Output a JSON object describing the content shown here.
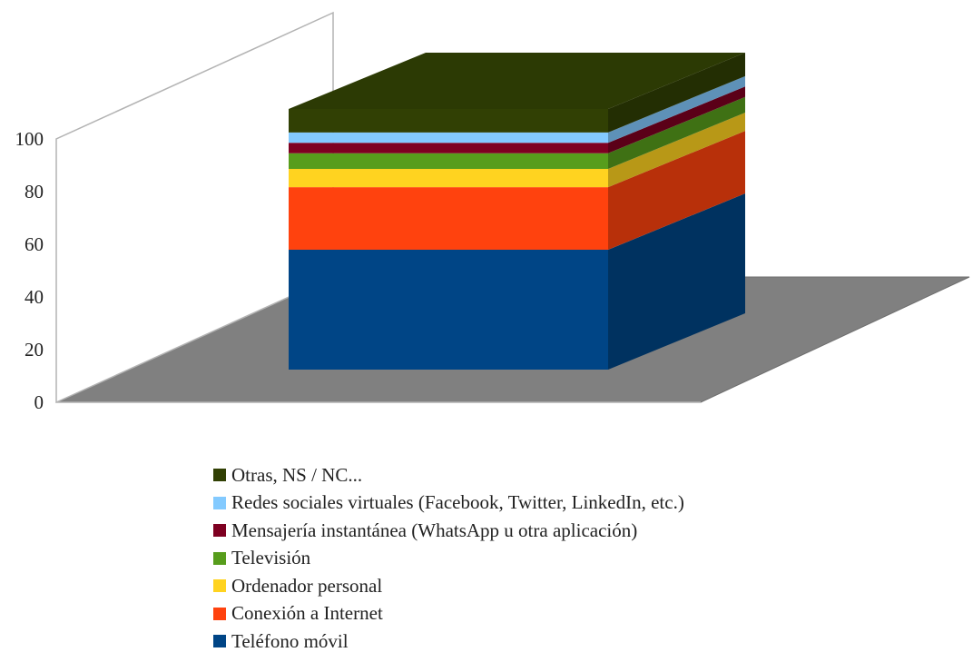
{
  "chart_data": {
    "type": "bar",
    "stacked": true,
    "three_d": true,
    "categories": [
      ""
    ],
    "ylim": [
      0,
      100
    ],
    "yticks": [
      0,
      20,
      40,
      60,
      80,
      100
    ],
    "series": [
      {
        "name": "Teléfono móvil",
        "values": [
          46
        ],
        "color": "#004586"
      },
      {
        "name": "Conexión a Internet",
        "values": [
          24
        ],
        "color": "#ff420e"
      },
      {
        "name": "Ordenador personal",
        "values": [
          7
        ],
        "color": "#ffd320"
      },
      {
        "name": "Televisión",
        "values": [
          6
        ],
        "color": "#579d1c"
      },
      {
        "name": "Mensajería instantánea (WhatsApp u otra aplicación)",
        "values": [
          4
        ],
        "color": "#7e0021"
      },
      {
        "name": "Redes sociales virtuales (Facebook, Twitter, LinkedIn, etc.)",
        "values": [
          4
        ],
        "color": "#83caff"
      },
      {
        "name": "Otras, NS / NC...",
        "values": [
          9
        ],
        "color": "#314004"
      }
    ],
    "legend_order": [
      6,
      5,
      4,
      3,
      2,
      1,
      0
    ],
    "legend": "bottom",
    "floor_color": "#808080",
    "grid": false
  }
}
